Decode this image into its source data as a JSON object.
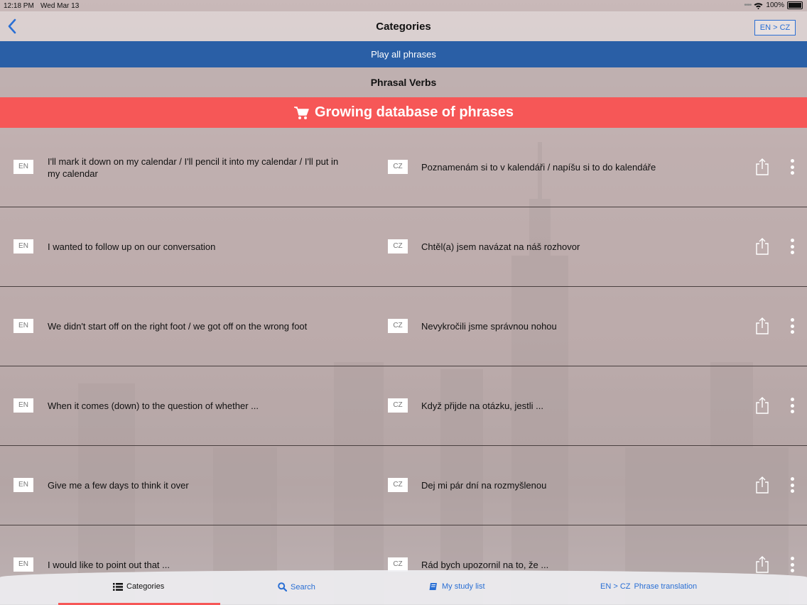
{
  "status_bar": {
    "time": "12:18 PM",
    "date": "Wed Mar 13",
    "battery": "100%"
  },
  "navbar": {
    "title": "Categories",
    "lang_toggle": "EN > CZ"
  },
  "play_all_label": "Play all phrases",
  "section_title": "Phrasal Verbs",
  "promo_banner": {
    "label": "Growing database of phrases",
    "icon": "cart-icon",
    "color": "#f65757"
  },
  "colors": {
    "accent": "#2a5fa6",
    "link": "#2a6fd4",
    "promo": "#f65757"
  },
  "phrases": [
    {
      "en_badge": "EN",
      "cz_badge": "CZ",
      "en": "I'll mark it down on my calendar / I'll pencil it into my calendar / I'll put in my calendar",
      "cz": "Poznamenám si to v kalendáři / napíšu si to do kalendáře"
    },
    {
      "en_badge": "EN",
      "cz_badge": "CZ",
      "en": "I wanted to follow up on our conversation",
      "cz": "Chtěl(a) jsem navázat na náš rozhovor"
    },
    {
      "en_badge": "EN",
      "cz_badge": "CZ",
      "en": "We didn't start off on the right foot / we got off on the wrong foot",
      "cz": "Nevykročili jsme správnou nohou"
    },
    {
      "en_badge": "EN",
      "cz_badge": "CZ",
      "en": "When it comes (down) to the question of whether ...",
      "cz": "Když přijde na otázku, jestli ..."
    },
    {
      "en_badge": "EN",
      "cz_badge": "CZ",
      "en": "Give me a few days to think it over",
      "cz": "Dej mi pár dní na rozmyšlenou"
    },
    {
      "en_badge": "EN",
      "cz_badge": "CZ",
      "en": "I would like to point out that ...",
      "cz": "Rád bych upozornil na to, že ..."
    }
  ],
  "tab_bar": {
    "categories": "Categories",
    "search": "Search",
    "study_list": "My study list",
    "translation_prefix": "EN > CZ",
    "translation": "Phrase translation"
  }
}
